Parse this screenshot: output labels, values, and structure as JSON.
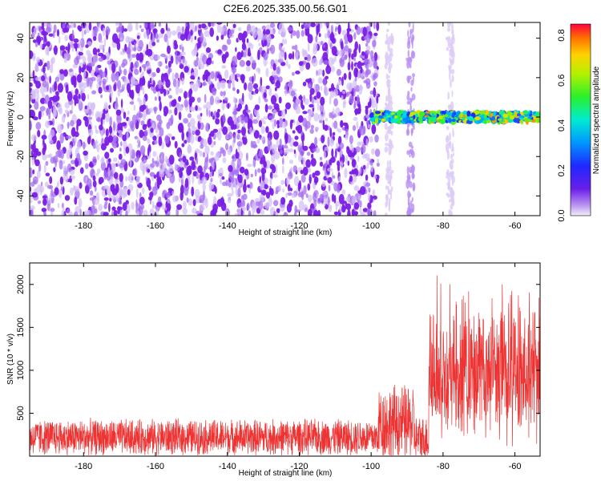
{
  "title": "C2E6.2025.335.00.56.G01",
  "chart_data": [
    {
      "type": "heatmap",
      "xlabel": "Height of straight line (km)",
      "ylabel": "Frequency (Hz)",
      "xlim": [
        -195,
        -53
      ],
      "ylim": [
        -50,
        48
      ],
      "x_ticks": [
        -180,
        -160,
        -140,
        -120,
        -100,
        -80,
        -60
      ],
      "y_ticks": [
        -40,
        -20,
        0,
        20,
        40
      ],
      "colorbar": {
        "label": "Normalized spectral amplitude",
        "range": [
          0.0,
          0.85
        ],
        "ticks": [
          0.0,
          0.2,
          0.4,
          0.6,
          0.8
        ],
        "colormap": "rainbow: purple-blue-cyan-green-yellow-red"
      },
      "features": {
        "noise_region_x": [
          -195,
          -100
        ],
        "noise_level": 0.05,
        "signal_line_x": [
          -100,
          -53
        ],
        "signal_line_frequency": 0,
        "signal_peak_level": 0.8,
        "vertical_artifacts_x": [
          -95,
          -89,
          -78
        ]
      }
    },
    {
      "type": "line",
      "xlabel": "Height of straight line (km)",
      "ylabel": "SNR (10 * v/v)",
      "xlim": [
        -195,
        -53
      ],
      "ylim": [
        0,
        2250
      ],
      "x_ticks": [
        -180,
        -160,
        -140,
        -120,
        -100,
        -80,
        -60
      ],
      "y_ticks": [
        500,
        1000,
        1500,
        2000
      ],
      "series": [
        {
          "color": "#ee3333",
          "segments": [
            {
              "x_range": [
                -195,
                -98
              ],
              "baseline": 220,
              "spread": 230
            },
            {
              "x_range": [
                -98,
                -88
              ],
              "baseline": 380,
              "spread": 500
            },
            {
              "x_range": [
                -88,
                -84
              ],
              "baseline": 200,
              "spread": 300
            },
            {
              "x_range": [
                -84,
                -53
              ],
              "baseline": 800,
              "spread": 1350
            }
          ],
          "max": 2200
        }
      ]
    }
  ]
}
